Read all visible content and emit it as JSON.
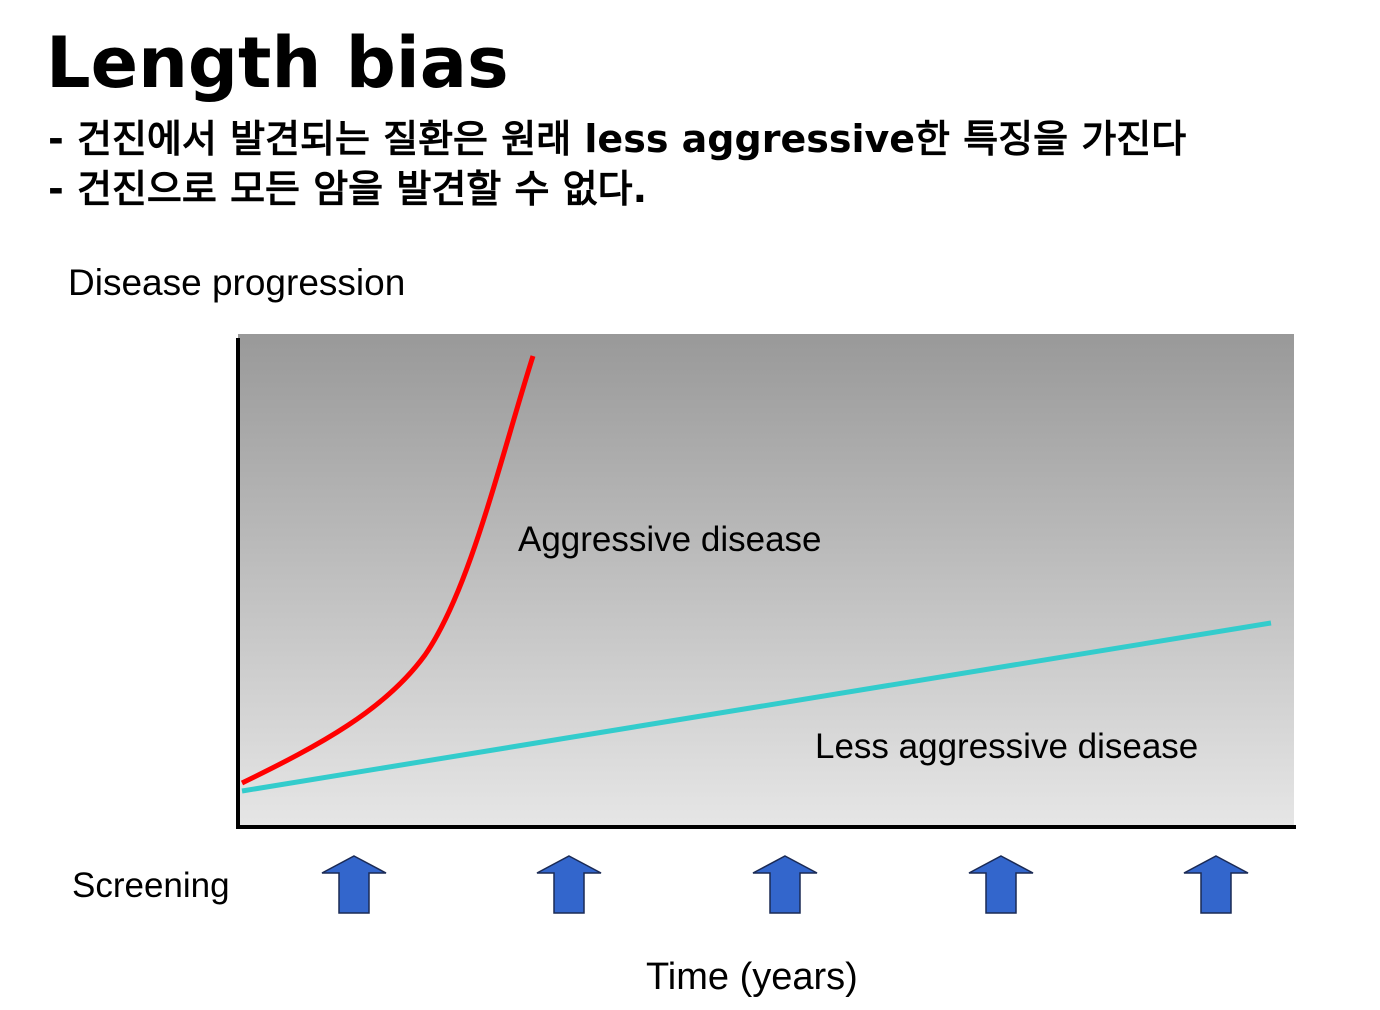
{
  "slide": {
    "title": "Length bias",
    "bullets": [
      "- 건진에서 발견되는 질환은 원래 less aggressive한 특징을 가진다",
      "- 건진으로 모든 암을 발견할 수 없다."
    ]
  },
  "diagram": {
    "y_axis_label": "Disease progression",
    "x_axis_label": "Time (years)",
    "screening_label": "Screening",
    "screening_count": 5,
    "curves": [
      {
        "label": "Aggressive disease",
        "color": "#ff0000"
      },
      {
        "label": "Less aggressive disease",
        "color": "#33cccc"
      }
    ],
    "arrow_color": "#3366cc",
    "background_gradient": [
      "#999999",
      "#e6e6e6"
    ]
  }
}
